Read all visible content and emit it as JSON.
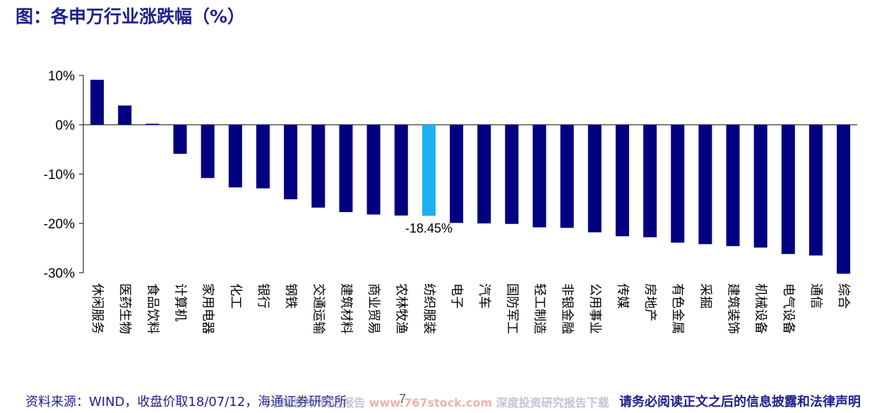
{
  "page": {
    "title": "图：各申万行业涨跌幅（%）"
  },
  "chart_data": {
    "type": "bar",
    "title": "",
    "xlabel": "",
    "ylabel": "",
    "ylim": [
      -30,
      10
    ],
    "yticks": [
      "10%",
      "0%",
      "-10%",
      "-20%",
      "-30%"
    ],
    "yticks_values": [
      10,
      0,
      -10,
      -20,
      -30
    ],
    "grid": false,
    "bar_color": "#000080",
    "highlight_color": "#1ab2f0",
    "highlight_category": "纺织服装",
    "categories": [
      "休闲服务",
      "医药生物",
      "食品饮料",
      "计算机",
      "家用电器",
      "化工",
      "银行",
      "钢铁",
      "交通运输",
      "建筑材料",
      "商业贸易",
      "农林牧渔",
      "纺织服装",
      "电子",
      "汽车",
      "国防军工",
      "轻工制造",
      "非银金融",
      "公用事业",
      "传媒",
      "房地产",
      "有色金属",
      "采掘",
      "建筑装饰",
      "机械设备",
      "电气设备",
      "通信",
      "综合"
    ],
    "values": [
      9.1,
      3.9,
      0.2,
      -5.9,
      -10.8,
      -12.7,
      -12.9,
      -15.1,
      -16.8,
      -17.7,
      -18.2,
      -18.4,
      -18.45,
      -19.9,
      -20.0,
      -20.1,
      -20.8,
      -20.9,
      -21.8,
      -22.6,
      -22.8,
      -23.9,
      -24.2,
      -24.6,
      -24.9,
      -26.2,
      -26.5,
      -30.2
    ],
    "annotations": [
      {
        "category": "纺织服装",
        "text": "-18.45%"
      }
    ]
  },
  "footer": {
    "source": "资料来源：WIND，收盘价取18/07/12，海通证券研究所",
    "page_number": "7",
    "watermark": "乐晴智库·精选报告",
    "watermark_url": "www.767stock.com",
    "watermark_tail": "深度投资研究报告下载",
    "disclaimer": "请务必阅读正文之后的信息披露和法律声明"
  }
}
